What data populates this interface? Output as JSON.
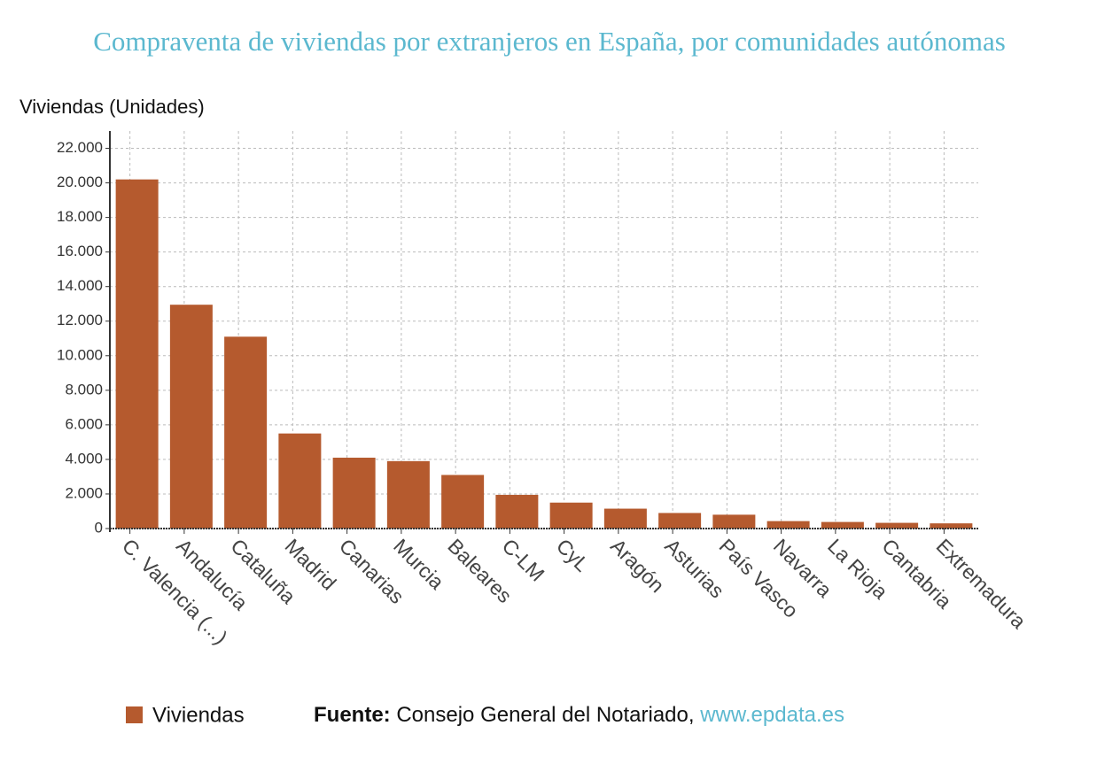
{
  "chart_data": {
    "type": "bar",
    "title": "Compraventa de viviendas por extranjeros en España, por comunidades autónomas",
    "y_label": "Viviendas (Unidades)",
    "categories": [
      "C. Valencia (...)",
      "Andalucía",
      "Cataluña",
      "Madrid",
      "Canarias",
      "Murcia",
      "Baleares",
      "C-LM",
      "CyL",
      "Aragón",
      "Asturias",
      "País Vasco",
      "Navarra",
      "La Rioja",
      "Cantabria",
      "Extremadura"
    ],
    "series": [
      {
        "name": "Viviendas",
        "color": "#b55a2e",
        "values": [
          20200,
          12950,
          11100,
          5500,
          4100,
          3900,
          3100,
          1950,
          1500,
          1150,
          900,
          800,
          430,
          380,
          330,
          300
        ]
      }
    ],
    "ylim": [
      0,
      23000
    ],
    "yticks": [
      0,
      {
        "value": 2000,
        "label": "2.000"
      },
      {
        "value": 4000,
        "label": "4.000"
      },
      {
        "value": 6000,
        "label": "6.000"
      },
      {
        "value": 8000,
        "label": "8.000"
      },
      {
        "value": 10000,
        "label": "10.000"
      },
      {
        "value": 12000,
        "label": "12.000"
      },
      {
        "value": 14000,
        "label": "14.000"
      },
      {
        "value": 16000,
        "label": "16.000"
      },
      {
        "value": 18000,
        "label": "18.000"
      },
      {
        "value": 20000,
        "label": "20.000"
      },
      {
        "value": 22000,
        "label": "22.000"
      }
    ],
    "grid": true,
    "source": {
      "label": "Fuente:",
      "text": "Consejo General del Notariado,",
      "link": "www.epdata.es"
    }
  }
}
